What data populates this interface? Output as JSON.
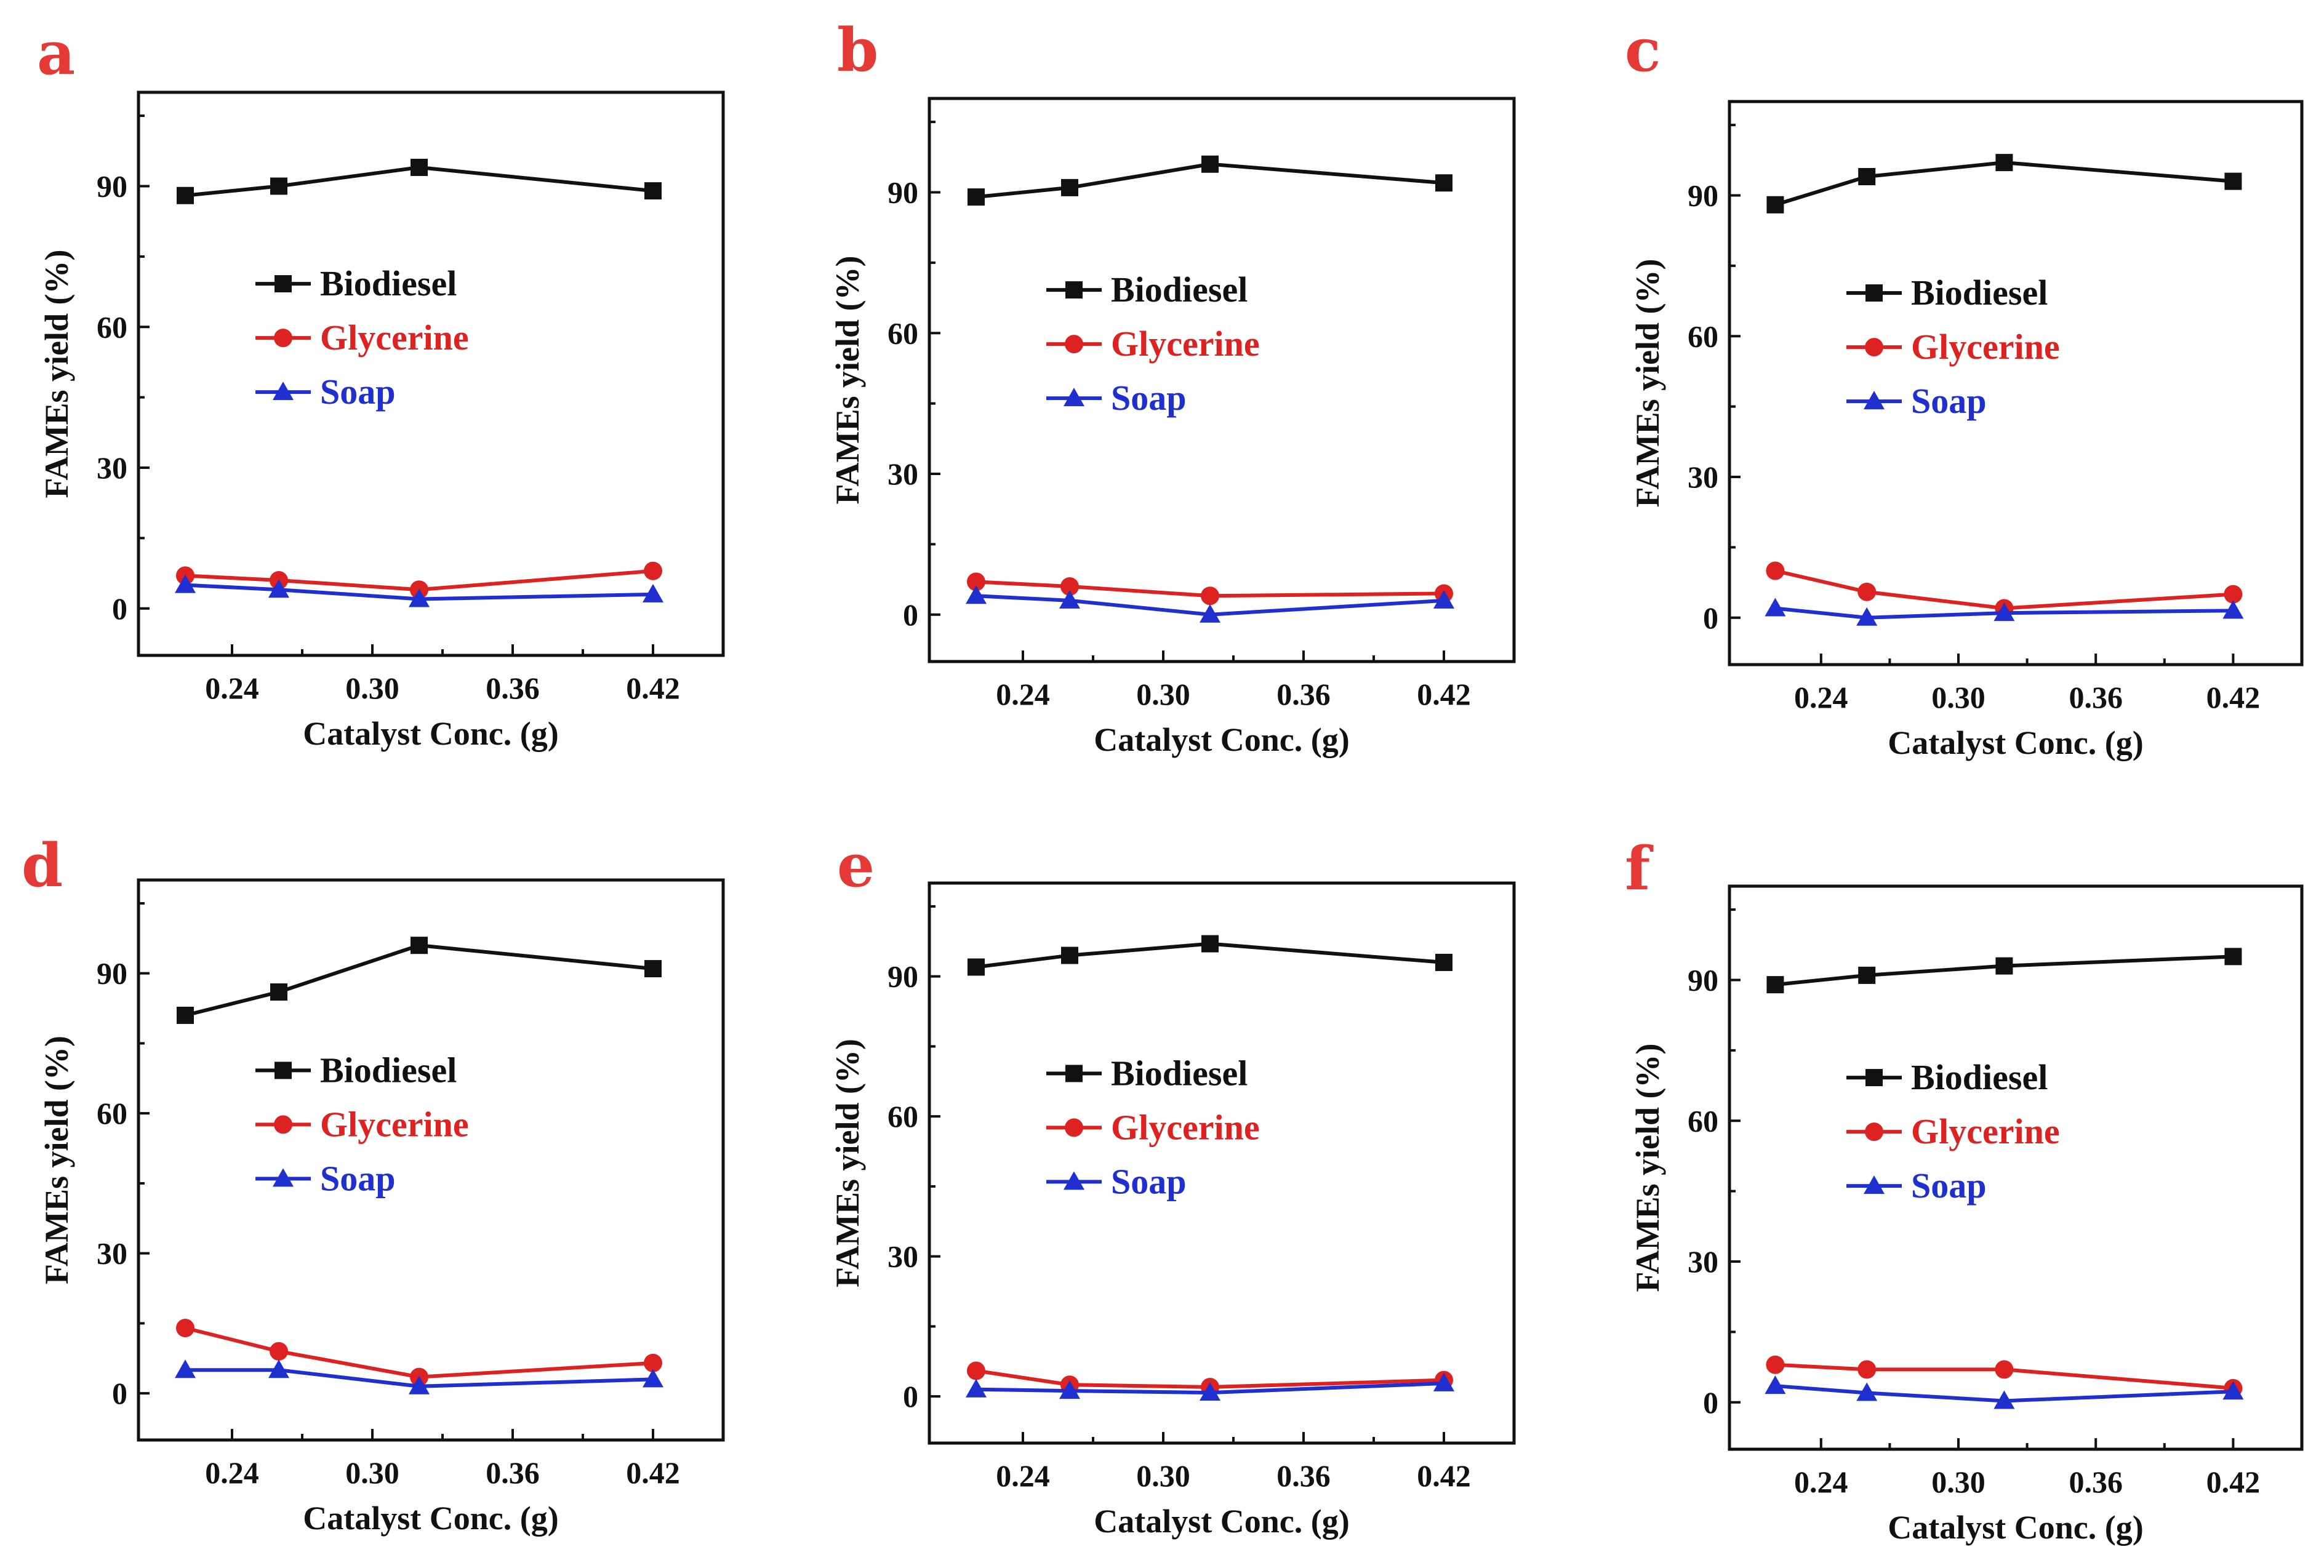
{
  "colors": {
    "Biodiesel": "#111111",
    "Glycerine": "#dd2222",
    "Soap": "#1f2fd0",
    "panel_letter": "#e53935"
  },
  "chart_data": [
    {
      "panel": "a",
      "type": "line",
      "xlabel": "Catalyst Conc. (g)",
      "ylabel": "FAMEs yield (%)",
      "xlim": [
        0.2,
        0.45
      ],
      "ylim": [
        -10,
        110
      ],
      "x_ticks": [
        "0.24",
        "0.30",
        "0.36",
        "0.42"
      ],
      "y_ticks": [
        "0",
        "30",
        "60",
        "90"
      ],
      "legend": "upper-left-middle",
      "series": [
        {
          "name": "Biodiesel",
          "marker": "square",
          "x": [
            0.22,
            0.26,
            0.32,
            0.42
          ],
          "values": [
            88,
            90,
            94,
            89
          ]
        },
        {
          "name": "Glycerine",
          "marker": "circle",
          "x": [
            0.22,
            0.26,
            0.32,
            0.42
          ],
          "values": [
            7,
            6,
            4,
            8
          ]
        },
        {
          "name": "Soap",
          "marker": "triangle",
          "x": [
            0.22,
            0.26,
            0.32,
            0.42
          ],
          "values": [
            5,
            4,
            2,
            3
          ]
        }
      ]
    },
    {
      "panel": "b",
      "type": "line",
      "xlabel": "Catalyst Conc. (g)",
      "ylabel": "FAMEs yield (%)",
      "xlim": [
        0.2,
        0.45
      ],
      "ylim": [
        -10,
        110
      ],
      "x_ticks": [
        "0.24",
        "0.30",
        "0.36",
        "0.42"
      ],
      "y_ticks": [
        "0",
        "30",
        "60",
        "90"
      ],
      "legend": "upper-left-middle",
      "series": [
        {
          "name": "Biodiesel",
          "marker": "square",
          "x": [
            0.22,
            0.26,
            0.32,
            0.42
          ],
          "values": [
            89,
            91,
            96,
            92
          ]
        },
        {
          "name": "Glycerine",
          "marker": "circle",
          "x": [
            0.22,
            0.26,
            0.32,
            0.42
          ],
          "values": [
            7,
            6,
            4,
            4.5
          ]
        },
        {
          "name": "Soap",
          "marker": "triangle",
          "x": [
            0.22,
            0.26,
            0.32,
            0.42
          ],
          "values": [
            4,
            3,
            0,
            3
          ]
        }
      ]
    },
    {
      "panel": "c",
      "type": "line",
      "xlabel": "Catalyst Conc. (g)",
      "ylabel": "FAMEs yield (%)",
      "xlim": [
        0.2,
        0.45
      ],
      "ylim": [
        -10,
        110
      ],
      "x_ticks": [
        "0.24",
        "0.30",
        "0.36",
        "0.42"
      ],
      "y_ticks": [
        "0",
        "30",
        "60",
        "90"
      ],
      "legend": "upper-left-middle",
      "series": [
        {
          "name": "Biodiesel",
          "marker": "square",
          "x": [
            0.22,
            0.26,
            0.32,
            0.42
          ],
          "values": [
            88,
            94,
            97,
            93
          ]
        },
        {
          "name": "Glycerine",
          "marker": "circle",
          "x": [
            0.22,
            0.26,
            0.32,
            0.42
          ],
          "values": [
            10,
            5.5,
            2,
            5
          ]
        },
        {
          "name": "Soap",
          "marker": "triangle",
          "x": [
            0.22,
            0.26,
            0.32,
            0.42
          ],
          "values": [
            2,
            0,
            1,
            1.5
          ]
        }
      ]
    },
    {
      "panel": "d",
      "type": "line",
      "xlabel": "Catalyst Conc. (g)",
      "ylabel": "FAMEs yield (%)",
      "xlim": [
        0.2,
        0.45
      ],
      "ylim": [
        -10,
        110
      ],
      "x_ticks": [
        "0.24",
        "0.30",
        "0.36",
        "0.42"
      ],
      "y_ticks": [
        "0",
        "30",
        "60",
        "90"
      ],
      "legend": "upper-left-middle",
      "series": [
        {
          "name": "Biodiesel",
          "marker": "square",
          "x": [
            0.22,
            0.26,
            0.32,
            0.42
          ],
          "values": [
            81,
            86,
            96,
            91
          ]
        },
        {
          "name": "Glycerine",
          "marker": "circle",
          "x": [
            0.22,
            0.26,
            0.32,
            0.42
          ],
          "values": [
            14,
            9,
            3.5,
            6.5
          ]
        },
        {
          "name": "Soap",
          "marker": "triangle",
          "x": [
            0.22,
            0.26,
            0.32,
            0.42
          ],
          "values": [
            5,
            5,
            1.5,
            3
          ]
        }
      ]
    },
    {
      "panel": "e",
      "type": "line",
      "xlabel": "Catalyst Conc. (g)",
      "ylabel": "FAMEs yield (%)",
      "xlim": [
        0.2,
        0.45
      ],
      "ylim": [
        -10,
        110
      ],
      "x_ticks": [
        "0.24",
        "0.30",
        "0.36",
        "0.42"
      ],
      "y_ticks": [
        "0",
        "30",
        "60",
        "90"
      ],
      "legend": "upper-left-middle",
      "series": [
        {
          "name": "Biodiesel",
          "marker": "square",
          "x": [
            0.22,
            0.26,
            0.32,
            0.42
          ],
          "values": [
            92,
            94.5,
            97,
            93
          ]
        },
        {
          "name": "Glycerine",
          "marker": "circle",
          "x": [
            0.22,
            0.26,
            0.32,
            0.42
          ],
          "values": [
            5.5,
            2.5,
            2,
            3.5
          ]
        },
        {
          "name": "Soap",
          "marker": "triangle",
          "x": [
            0.22,
            0.26,
            0.32,
            0.42
          ],
          "values": [
            1.5,
            1.2,
            0.8,
            2.8
          ]
        }
      ]
    },
    {
      "panel": "f",
      "type": "line",
      "xlabel": "Catalyst Conc. (g)",
      "ylabel": "FAMEs yield (%)",
      "xlim": [
        0.2,
        0.45
      ],
      "ylim": [
        -10,
        110
      ],
      "x_ticks": [
        "0.24",
        "0.30",
        "0.36",
        "0.42"
      ],
      "y_ticks": [
        "0",
        "30",
        "60",
        "90"
      ],
      "legend": "upper-left-middle",
      "series": [
        {
          "name": "Biodiesel",
          "marker": "square",
          "x": [
            0.22,
            0.26,
            0.32,
            0.42
          ],
          "values": [
            89,
            91,
            93,
            95
          ]
        },
        {
          "name": "Glycerine",
          "marker": "circle",
          "x": [
            0.22,
            0.26,
            0.32,
            0.42
          ],
          "values": [
            8,
            7,
            7,
            3
          ]
        },
        {
          "name": "Soap",
          "marker": "triangle",
          "x": [
            0.22,
            0.26,
            0.32,
            0.42
          ],
          "values": [
            3.5,
            2,
            0.3,
            2.3
          ]
        }
      ]
    }
  ]
}
